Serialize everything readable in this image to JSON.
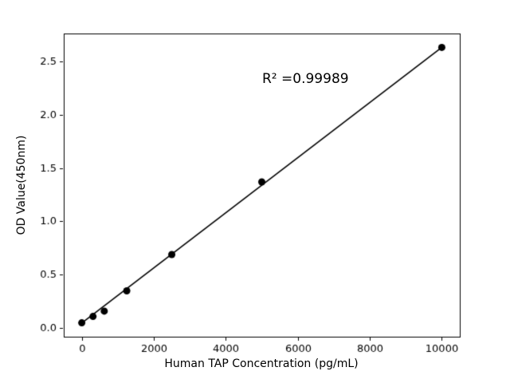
{
  "chart_data": {
    "type": "scatter",
    "title": "",
    "xlabel": "Human TAP Concentration (pg/mL)",
    "ylabel": "OD Value(450nm)",
    "annotation": "R² =0.99989",
    "x": [
      0,
      312.5,
      625,
      1250,
      2500,
      5000,
      10000
    ],
    "y": [
      0.05,
      0.11,
      0.16,
      0.35,
      0.69,
      1.37,
      2.63
    ],
    "fit_line": {
      "x": [
        0,
        10000
      ],
      "y": [
        0.048,
        2.63
      ]
    },
    "xticks": [
      0,
      2000,
      4000,
      6000,
      8000,
      10000
    ],
    "xtick_labels": [
      "0",
      "2000",
      "4000",
      "6000",
      "8000",
      "10000"
    ],
    "yticks": [
      0.0,
      0.5,
      1.0,
      1.5,
      2.0,
      2.5
    ],
    "ytick_labels": [
      "0.0",
      "0.5",
      "1.0",
      "1.5",
      "2.0",
      "2.5"
    ],
    "xlim": [
      -500,
      10500
    ],
    "ylim": [
      -0.08,
      2.76
    ],
    "grid": false,
    "legend": "none",
    "colors": {
      "marker": "#000000",
      "line": "#000000",
      "axis": "#000000",
      "tick_label": "#000000",
      "background": "#ffffff"
    }
  }
}
